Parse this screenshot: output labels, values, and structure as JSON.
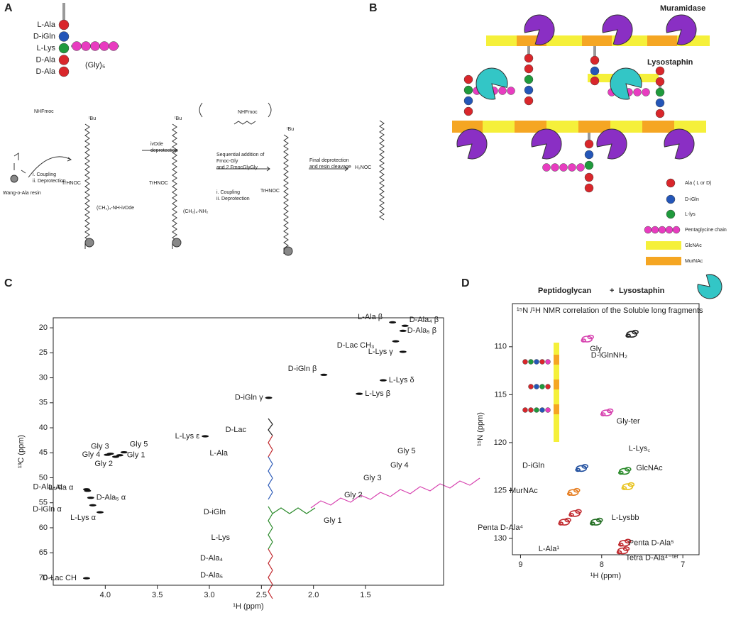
{
  "panel_a": {
    "label": "A",
    "residues": [
      "L-Ala",
      "D-iGln",
      "L-Lys",
      "D-Ala",
      "D-Ala"
    ],
    "gly": "(Gly)₅",
    "resin": "Wang-o-Ala resin",
    "step1": [
      "i. Coupling",
      "ii. Deprotection"
    ],
    "step2": [
      "ivDde",
      "deprotection"
    ],
    "step3": [
      "Sequential addition of",
      "Fmoc-Gly",
      "and 2 FmocGlyGly",
      "i. Coupling",
      "ii. Deprotection"
    ],
    "step4": [
      "Final deprotection",
      "and resin cleavage"
    ],
    "groups": [
      "NHFmoc",
      "NHFmoc",
      "TrHNOC",
      "TrHNOC",
      "TrHNOC",
      "H₂NOC",
      "(CH₂)₄-NH-ivDde",
      "(CH₂)₄-NH₂",
      "ᵗBu",
      "ᵗBu",
      "ᵗBu"
    ]
  },
  "panel_b": {
    "label": "B",
    "enzyme1": "Muramidase",
    "enzyme2": "Lysostaphin",
    "legend": [
      "Ala ( L or D)",
      "D-iGln",
      "L-lys",
      "Pentaglycine chain",
      "GlcNAc",
      "MurNAc"
    ]
  },
  "panel_c": {
    "label": "C",
    "xlabel": "¹H (ppm)",
    "ylabel": "¹³C (ppm)",
    "xlim": [
      4.5,
      0.75
    ],
    "ylim": [
      18,
      71.5
    ],
    "xticks": [
      {
        "value": 4,
        "label": "4.0"
      },
      3.5,
      {
        "value": 3,
        "label": "3.0"
      },
      2.5,
      {
        "value": 2,
        "label": "2.0"
      },
      1.5
    ],
    "yticks": [
      20,
      25,
      30,
      35,
      40,
      45,
      50,
      55,
      60,
      65,
      70
    ],
    "peaks": [
      {
        "label": "L-Ala β",
        "x": 1.24,
        "y": 18.9,
        "color": "#c0282d"
      },
      {
        "label": "D-Ala₄ β",
        "x": 1.12,
        "y": 19.6,
        "color": "#c0282d"
      },
      {
        "label": "D-Ala₅ β",
        "x": 1.14,
        "y": 20.6,
        "color": "#c0282d"
      },
      {
        "label": "D-Lac CH₃",
        "x": 1.21,
        "y": 22.7,
        "color": "#222222"
      },
      {
        "label": "L-Lys γ",
        "x": 1.14,
        "y": 24.8,
        "color": "#2a8a2a"
      },
      {
        "label": "D-iGln β",
        "x": 1.9,
        "y": 29.4,
        "color": "#1f4e9e"
      },
      {
        "label": "L-Lys δ",
        "x": 1.33,
        "y": 30.5,
        "color": "#2a8a2a"
      },
      {
        "label": "L-Lys β",
        "x": 1.56,
        "y": 33.2,
        "color": "#2a8a2a"
      },
      {
        "label": "D-iGln γ",
        "x": 2.43,
        "y": 34.0,
        "color": "#1f4e9e"
      },
      {
        "label": "L-Lys ε",
        "x": 3.04,
        "y": 41.7,
        "color": "#2a8a2a"
      },
      {
        "label": "Gly 5",
        "x": 3.82,
        "y": 44.9,
        "color": "#d63fae"
      },
      {
        "label": "Gly 1",
        "x": 3.86,
        "y": 45.5,
        "color": "#d63fae"
      },
      {
        "label": "Gly 3",
        "x": 3.95,
        "y": 45.2,
        "color": "#d63fae"
      },
      {
        "label": "Gly 4",
        "x": 3.98,
        "y": 45.4,
        "color": "#d63fae"
      },
      {
        "label": "Gly 2",
        "x": 3.9,
        "y": 45.8,
        "color": "#d63fae"
      },
      {
        "label": "D-Ala₄ α",
        "x": 4.18,
        "y": 52.3,
        "color": "#c0282d"
      },
      {
        "label": "L-Ala α",
        "x": 4.17,
        "y": 52.6,
        "color": "#c0282d"
      },
      {
        "label": "D-Ala₅ α",
        "x": 4.14,
        "y": 54.0,
        "color": "#c0282d"
      },
      {
        "label": "D-iGln α",
        "x": 4.12,
        "y": 55.5,
        "color": "#1f4e9e"
      },
      {
        "label": "L-Lys α",
        "x": 4.05,
        "y": 56.9,
        "color": "#2a8a2a"
      },
      {
        "label": "D-Lac CH",
        "x": 4.18,
        "y": 70.1,
        "color": "#222222"
      }
    ],
    "structure": [
      "D-Lac",
      "L-Ala",
      "D-iGln",
      "L-Lys",
      "D-Ala₄",
      "D-Ala₅",
      "Gly 1",
      "Gly 2",
      "Gly 3",
      "Gly 4",
      "Gly 5"
    ]
  },
  "panel_d": {
    "label": "D",
    "title1": "Peptidoglycan",
    "plus": "+",
    "title2": "Lysostaphin",
    "subtitle": "¹⁵N /¹H NMR correlation of the Soluble long fragments",
    "xlabel": "¹H (ppm)",
    "ylabel": "¹⁵N (ppm)",
    "xlim": [
      9.1,
      6.8
    ],
    "ylim": [
      105.5,
      131.7
    ],
    "xticks": [
      9,
      8,
      7
    ],
    "yticks": [
      110,
      115,
      120,
      125,
      130
    ],
    "peaks": [
      {
        "label": "Gly",
        "x": 8.18,
        "y": 109.2,
        "color": "#d63fae"
      },
      {
        "label": "D-iGlnNH₂",
        "x": 7.63,
        "y": 108.7,
        "color": "#222222"
      },
      {
        "label": "Gly-ter",
        "x": 7.94,
        "y": 116.9,
        "color": "#d63fae"
      },
      {
        "label": "D-iGln",
        "x": 8.25,
        "y": 122.7,
        "color": "#1f4e9e"
      },
      {
        "label": "L-Lys꜀",
        "x": 7.72,
        "y": 123.0,
        "color": "#2a8a2a"
      },
      {
        "label": "GlcNAc",
        "x": 7.68,
        "y": 124.6,
        "color": "#e8c21a"
      },
      {
        "label": "MurNAc",
        "x": 8.35,
        "y": 125.2,
        "color": "#e67e22"
      },
      {
        "label": "Penta D-Ala⁴",
        "x": 8.46,
        "y": 128.3,
        "color": "#c0282d"
      },
      {
        "label": "L-Lysbb",
        "x": 8.07,
        "y": 128.3,
        "color": "#1e6b1e"
      },
      {
        "label": "L-Ala¹",
        "x": 8.33,
        "y": 127.4,
        "color": "#c0282d"
      },
      {
        "label": "Penta D-Ala⁵",
        "x": 7.72,
        "y": 130.5,
        "color": "#c0282d"
      },
      {
        "label": "Tetra D-Ala⁴⁻ᵗᵉʳ",
        "x": 7.74,
        "y": 131.3,
        "color": "#c0282d"
      }
    ]
  }
}
